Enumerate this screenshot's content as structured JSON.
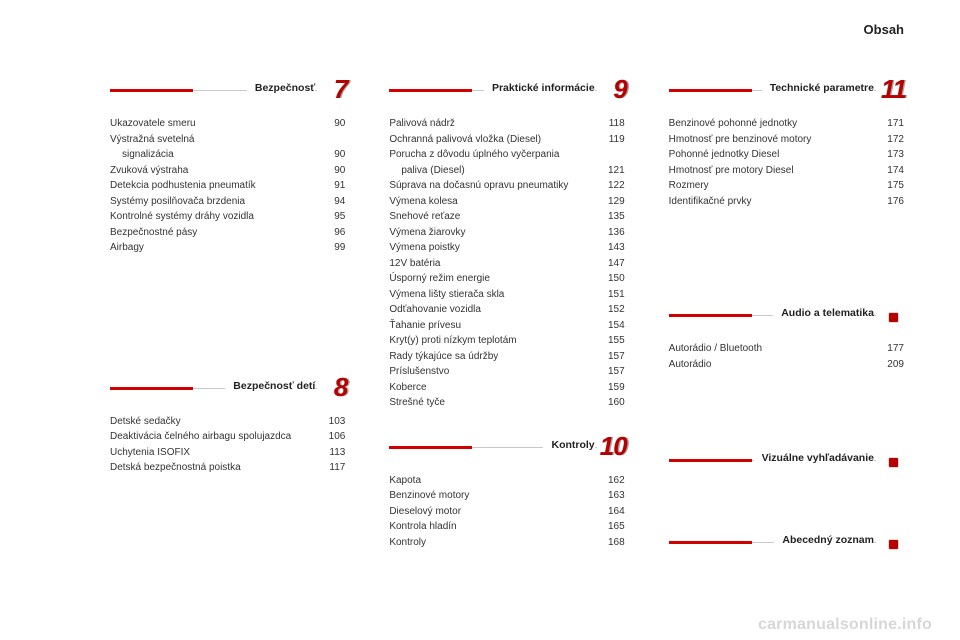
{
  "header": {
    "title": "Obsah"
  },
  "watermark": "carmanualsonline.info",
  "col1": {
    "sec7": {
      "title": "Bezpečnosť",
      "num": "7",
      "items": [
        {
          "label": "Ukazovatele smeru",
          "pg": "90"
        },
        {
          "label": "Výstražná svetelná",
          "pg": ""
        },
        {
          "label": "signalizácia",
          "pg": "90",
          "indent": true
        },
        {
          "label": "Zvuková výstraha",
          "pg": "90"
        },
        {
          "label": "Detekcia podhustenia pneumatík",
          "pg": "91"
        },
        {
          "label": "Systémy posilňovača brzdenia",
          "pg": "94"
        },
        {
          "label": "Kontrolné systémy dráhy vozidla",
          "pg": "95"
        },
        {
          "label": "Bezpečnostné pásy",
          "pg": "96"
        },
        {
          "label": "Airbagy",
          "pg": "99"
        }
      ]
    },
    "sec8": {
      "title": "Bezpečnosť detí",
      "num": "8",
      "items": [
        {
          "label": "Detské sedačky",
          "pg": "103"
        },
        {
          "label": "Deaktivácia čelného airbagu spolujazdca",
          "pg": "106"
        },
        {
          "label": "Uchytenia ISOFIX",
          "pg": "113"
        },
        {
          "label": "Detská bezpečnostná poistka",
          "pg": "117"
        }
      ]
    }
  },
  "col2": {
    "sec9": {
      "title": "Praktické informácie",
      "num": "9",
      "items": [
        {
          "label": "Palivová nádrž",
          "pg": "118"
        },
        {
          "label": "Ochranná palivová vložka (Diesel)",
          "pg": "119"
        },
        {
          "label": "Porucha z dôvodu úplného vyčerpania",
          "pg": ""
        },
        {
          "label": "paliva (Diesel)",
          "pg": "121",
          "indent": true
        },
        {
          "label": "Súprava na dočasnú opravu pneumatiky",
          "pg": "122"
        },
        {
          "label": "Výmena kolesa",
          "pg": "129"
        },
        {
          "label": "Snehové reťaze",
          "pg": "135"
        },
        {
          "label": "Výmena žiarovky",
          "pg": "136"
        },
        {
          "label": "Výmena poistky",
          "pg": "143"
        },
        {
          "label": "12V batéria",
          "pg": "147"
        },
        {
          "label": "Úsporný režim energie",
          "pg": "150"
        },
        {
          "label": "Výmena lišty stierača skla",
          "pg": "151"
        },
        {
          "label": "Odťahovanie vozidla",
          "pg": "152"
        },
        {
          "label": "Ťahanie prívesu",
          "pg": "154"
        },
        {
          "label": "Kryt(y) proti nízkym teplotám",
          "pg": "155"
        },
        {
          "label": "Rady týkajúce sa údržby",
          "pg": "157"
        },
        {
          "label": "Príslušenstvo",
          "pg": "157"
        },
        {
          "label": "Koberce",
          "pg": "159"
        },
        {
          "label": "Strešné tyče",
          "pg": "160"
        }
      ]
    },
    "sec10": {
      "title": "Kontroly",
      "num": "10",
      "items": [
        {
          "label": "Kapota",
          "pg": "162"
        },
        {
          "label": "Benzinové motory",
          "pg": "163"
        },
        {
          "label": "Dieselový motor",
          "pg": "164"
        },
        {
          "label": "Kontrola hladín",
          "pg": "165"
        },
        {
          "label": "Kontroly",
          "pg": "168"
        }
      ]
    }
  },
  "col3": {
    "sec11": {
      "title": "Technické parametre",
      "num": "11",
      "items": [
        {
          "label": "Benzinové pohonné jednotky",
          "pg": "171"
        },
        {
          "label": "Hmotnosť pre benzinové motory",
          "pg": "172"
        },
        {
          "label": "Pohonné jednotky Diesel",
          "pg": "173"
        },
        {
          "label": "Hmotnosť pre motory Diesel",
          "pg": "174"
        },
        {
          "label": "Rozmery",
          "pg": "175"
        },
        {
          "label": "Identifikačné prvky",
          "pg": "176"
        }
      ]
    },
    "sec_audio": {
      "title": "Audio a telematika",
      "items": [
        {
          "label": "Autorádio / Bluetooth",
          "pg": "177"
        },
        {
          "label": "Autorádio",
          "pg": "209"
        }
      ]
    },
    "sec_vis": {
      "title": "Vizuálne vyhľadávanie"
    },
    "sec_abc": {
      "title": "Abecedný zoznam"
    }
  }
}
